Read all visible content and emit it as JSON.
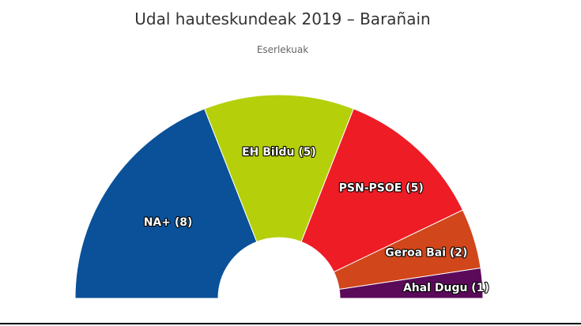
{
  "title": "Udal hauteskundeak 2019 – Barañain",
  "subtitle": "Eserlekuak",
  "chart_data": {
    "type": "pie",
    "subtype": "parliament-semicircle",
    "title": "Udal hauteskundeak 2019 – Barañain",
    "subtitle": "Eserlekuak",
    "series": [
      {
        "name": "NA+",
        "label": "NA+ (8)",
        "value": 8,
        "color": "#0a5199"
      },
      {
        "name": "EH Bildu",
        "label": "EH Bildu (5)",
        "value": 5,
        "color": "#b5cf0a"
      },
      {
        "name": "PSN-PSOE",
        "label": "PSN-PSOE (5)",
        "value": 5,
        "color": "#ee1c25"
      },
      {
        "name": "Geroa Bai",
        "label": "Geroa Bai (2)",
        "value": 2,
        "color": "#d1461a"
      },
      {
        "name": "Ahal Dugu",
        "label": "Ahal Dugu (1)",
        "value": 1,
        "color": "#5b0a5a"
      }
    ]
  }
}
